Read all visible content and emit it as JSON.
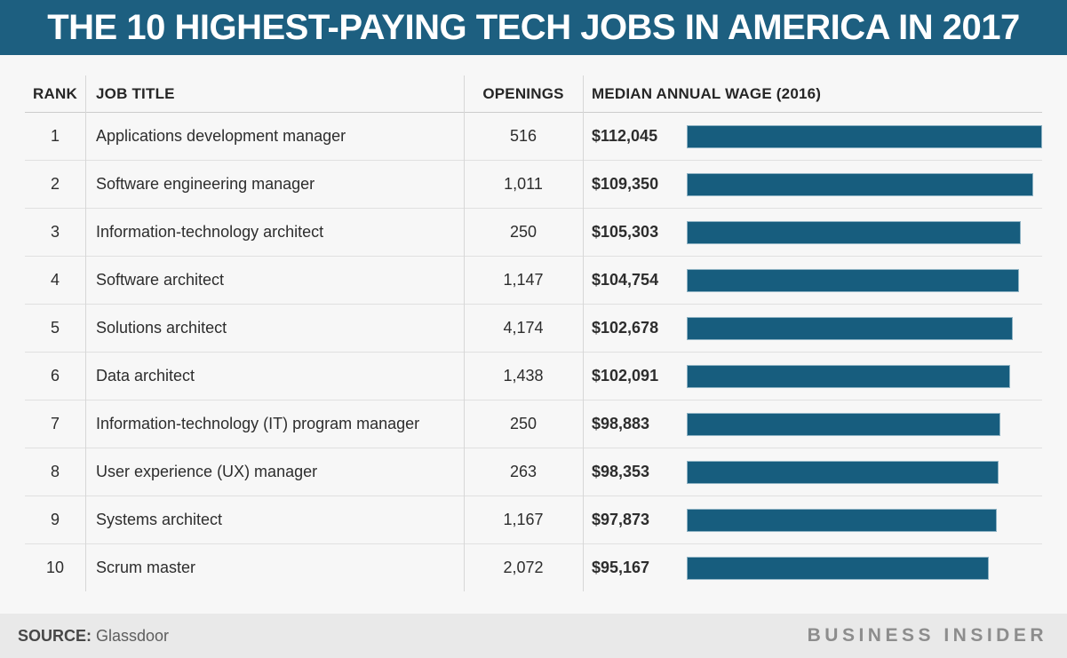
{
  "banner": {
    "title": "THE 10 HIGHEST-PAYING TECH JOBS IN AMERICA IN 2017"
  },
  "table": {
    "headers": {
      "rank": "RANK",
      "job_title": "JOB TITLE",
      "openings": "OPENINGS",
      "wage": "MEDIAN ANNUAL WAGE (2016)"
    },
    "rows": [
      {
        "rank": "1",
        "job_title": "Applications development manager",
        "openings": "516",
        "wage": "$112,045",
        "wage_value": 112045
      },
      {
        "rank": "2",
        "job_title": "Software engineering manager",
        "openings": "1,011",
        "wage": "$109,350",
        "wage_value": 109350
      },
      {
        "rank": "3",
        "job_title": "Information-technology architect",
        "openings": "250",
        "wage": "$105,303",
        "wage_value": 105303
      },
      {
        "rank": "4",
        "job_title": "Software architect",
        "openings": "1,147",
        "wage": "$104,754",
        "wage_value": 104754
      },
      {
        "rank": "5",
        "job_title": "Solutions architect",
        "openings": "4,174",
        "wage": "$102,678",
        "wage_value": 102678
      },
      {
        "rank": "6",
        "job_title": "Data architect",
        "openings": "1,438",
        "wage": "$102,091",
        "wage_value": 102091
      },
      {
        "rank": "7",
        "job_title": "Information-technology (IT) program manager",
        "openings": "250",
        "wage": "$98,883",
        "wage_value": 98883
      },
      {
        "rank": "8",
        "job_title": "User experience (UX) manager",
        "openings": "263",
        "wage": "$98,353",
        "wage_value": 98353
      },
      {
        "rank": "9",
        "job_title": "Systems architect",
        "openings": "1,167",
        "wage": "$97,873",
        "wage_value": 97873
      },
      {
        "rank": "10",
        "job_title": "Scrum master",
        "openings": "2,072",
        "wage": "$95,167",
        "wage_value": 95167
      }
    ]
  },
  "chart_data": {
    "type": "bar",
    "orientation": "horizontal",
    "title": "THE 10 HIGHEST-PAYING TECH JOBS IN AMERICA IN 2017",
    "categories": [
      "Applications development manager",
      "Software engineering manager",
      "Information-technology architect",
      "Software architect",
      "Solutions architect",
      "Data architect",
      "Information-technology (IT) program manager",
      "User experience (UX) manager",
      "Systems architect",
      "Scrum master"
    ],
    "series": [
      {
        "name": "Median annual wage (2016)",
        "values": [
          112045,
          109350,
          105303,
          104754,
          102678,
          102091,
          98883,
          98353,
          97873,
          95167
        ]
      },
      {
        "name": "Openings",
        "values": [
          516,
          1011,
          250,
          1147,
          4174,
          1438,
          250,
          263,
          1167,
          2072
        ]
      }
    ],
    "xlim": [
      0,
      112045
    ],
    "grid": false,
    "legend": "none",
    "value_labels": [
      "$112,045",
      "$109,350",
      "$105,303",
      "$104,754",
      "$102,678",
      "$102,091",
      "$98,883",
      "$98,353",
      "$97,873",
      "$95,167"
    ],
    "source": "Glassdoor"
  },
  "footer": {
    "source_label": "SOURCE:",
    "source_value": " Glassdoor",
    "brand": "BUSINESS INSIDER"
  },
  "colors": {
    "banner_bg": "#1d5f80",
    "bar": "#175d7e",
    "bar_border": "#8fb3c4",
    "page_bg": "#f7f7f7",
    "footer_bg": "#e9e9e9"
  }
}
